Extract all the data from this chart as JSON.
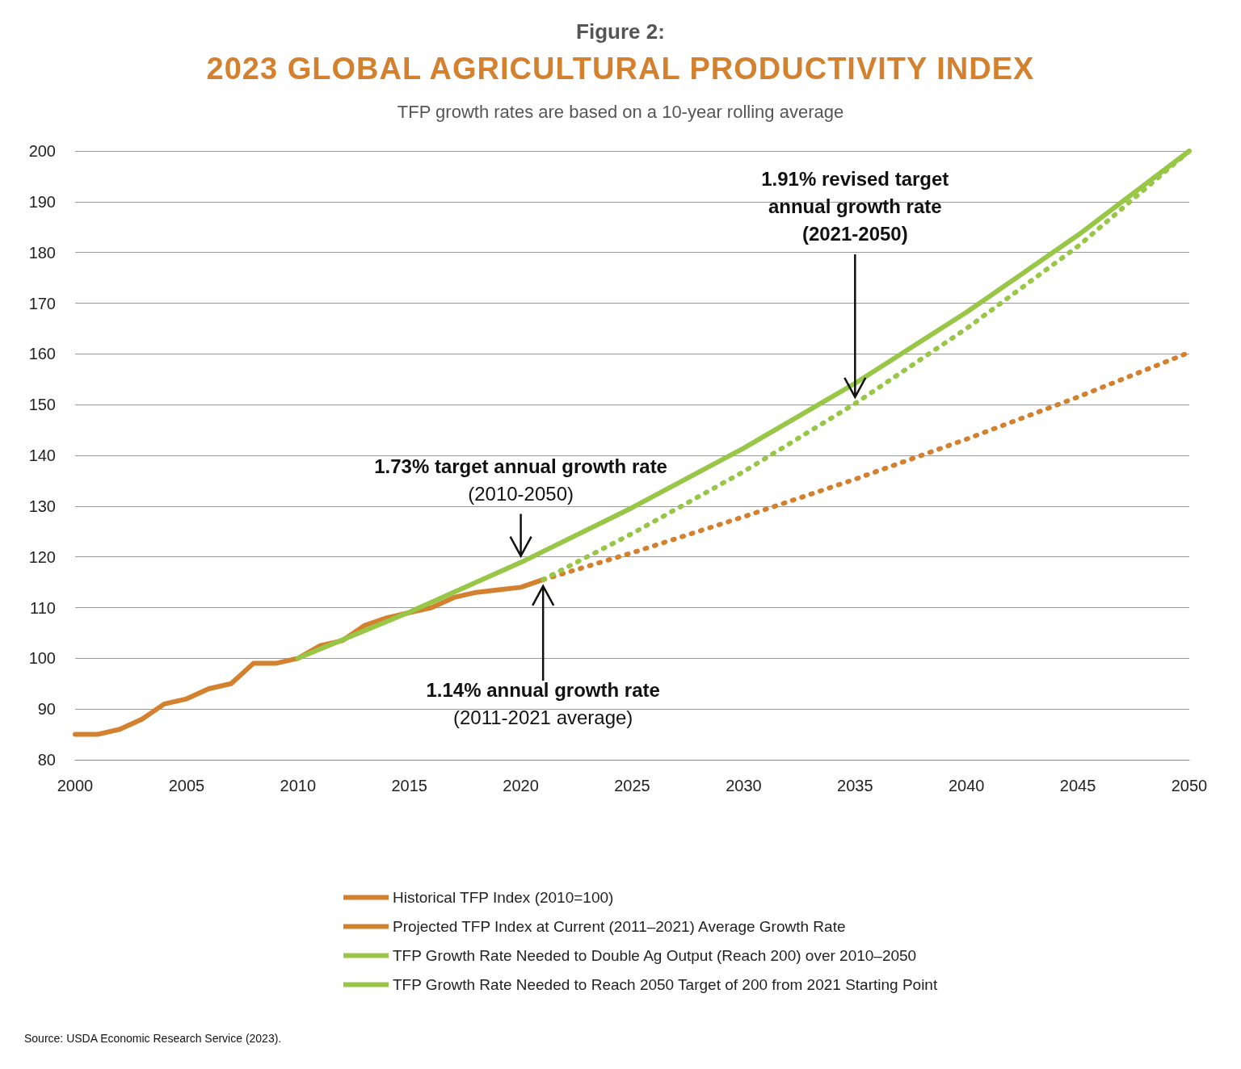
{
  "chart_data": {
    "type": "line",
    "title": "Figure 2:",
    "subtitle": "2023 GLOBAL AGRICULTURAL PRODUCTIVITY INDEX",
    "annotations": [
      "TFP growth rates are based on a 10-year rolling average",
      {
        "text": "1.73% target annual growth rate\n(2010-2050)",
        "x": 2020,
        "y": 118.9
      },
      {
        "text": "1.91% revised target\nannual growth rate\n(2021-2050)",
        "x": 2035,
        "y": 150.2
      },
      {
        "text": "1.14% annual growth rate\n(2011-2021 average)",
        "x": 2021,
        "y": 115.5
      },
      "Source: USDA Economic Research Service (2023)."
    ],
    "series": [
      {
        "name": "Historical TFP Index (2010=100)",
        "color": "#d4812f",
        "line_style": "solid",
        "x": [
          2000,
          2001,
          2002,
          2003,
          2004,
          2005,
          2006,
          2007,
          2008,
          2009,
          2010,
          2011,
          2012,
          2013,
          2014,
          2015,
          2016,
          2017,
          2018,
          2019,
          2020,
          2021
        ],
        "values": [
          85,
          85,
          86,
          88,
          91,
          92,
          94,
          95,
          99,
          99,
          100,
          102.5,
          103.5,
          106.5,
          108,
          109,
          110,
          112,
          113,
          113.5,
          114,
          115.5
        ]
      },
      {
        "name": "Projected TFP Index at Current (2011–2021) Average Growth Rate",
        "color": "#d4812f",
        "line_style": "dotted",
        "x": [
          2021,
          2025,
          2030,
          2035,
          2040,
          2045,
          2050
        ],
        "values": [
          115.5,
          120.8,
          127.9,
          135.3,
          143.2,
          151.5,
          160.3
        ]
      },
      {
        "name": "TFP Growth Rate Needed to Double Ag Output (Reach 200) over 2010–2050",
        "color": "#98c646",
        "line_style": "solid",
        "x": [
          2010,
          2015,
          2020,
          2025,
          2030,
          2035,
          2040,
          2045,
          2050
        ],
        "values": [
          100,
          109.1,
          118.9,
          129.7,
          141.4,
          154.2,
          168.2,
          183.4,
          200
        ]
      },
      {
        "name": "TFP Growth Rate Needed to Reach 2050 Target of 200 from 2021 Starting Point",
        "color": "#98c646",
        "line_style": "dotted",
        "x": [
          2021,
          2025,
          2030,
          2035,
          2040,
          2045,
          2050
        ],
        "values": [
          115.5,
          124.6,
          136.8,
          150.2,
          165,
          181.2,
          200
        ]
      }
    ],
    "xlim": [
      2000,
      2050
    ],
    "xticks": [
      2000,
      2005,
      2010,
      2015,
      2020,
      2025,
      2030,
      2035,
      2040,
      2045,
      2050
    ],
    "ylim": [
      80,
      200
    ],
    "yticks": [
      80,
      90,
      100,
      110,
      120,
      130,
      140,
      150,
      160,
      170,
      180,
      190,
      200
    ],
    "grid": "y",
    "legend": "bottom",
    "marker": "none"
  }
}
